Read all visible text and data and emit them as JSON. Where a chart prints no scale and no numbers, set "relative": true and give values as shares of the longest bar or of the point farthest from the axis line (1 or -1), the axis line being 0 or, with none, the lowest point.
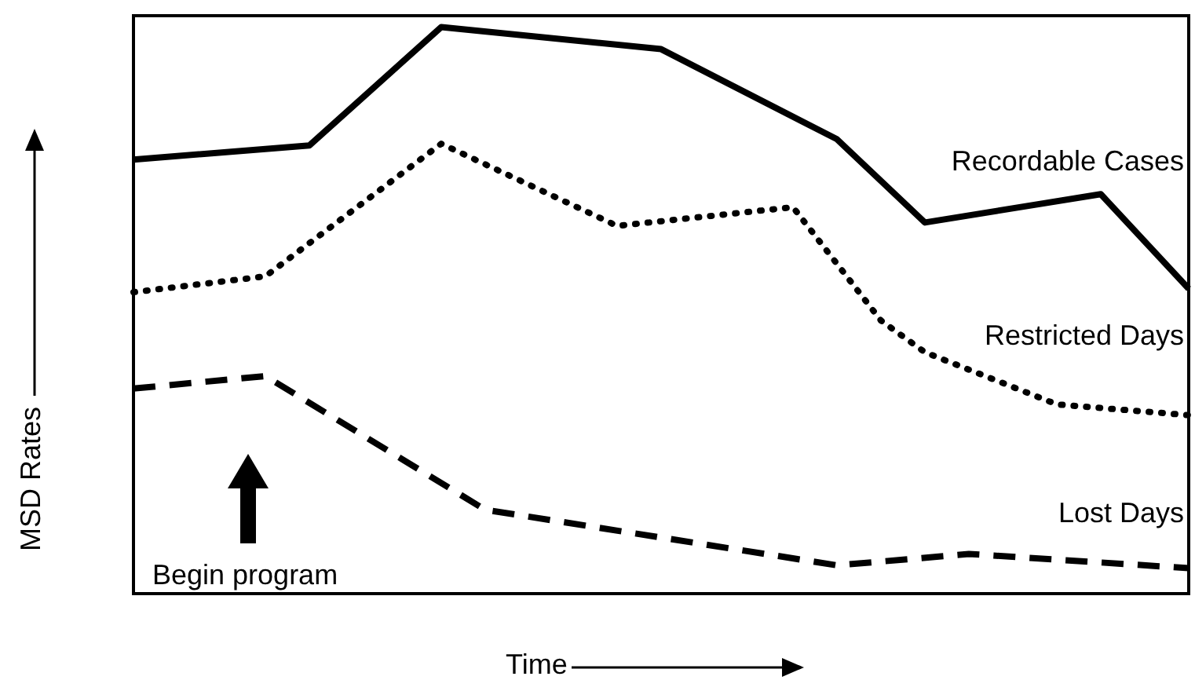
{
  "chart_data": {
    "type": "line",
    "relative": true,
    "xlabel": "Time",
    "ylabel": "MSD Rates",
    "marker": "none",
    "annotations": [
      "Begin program"
    ],
    "categories": [
      null,
      null,
      null,
      null,
      null,
      null,
      null,
      null,
      null,
      null,
      null,
      null,
      null,
      null,
      null,
      null,
      null,
      null,
      null,
      null,
      null,
      null,
      null,
      null,
      null
    ],
    "series": [
      {
        "name": "Recordable Cases",
        "color": "#000000",
        "line_style": "solid",
        "values": [
          0.766,
          null,
          null,
          null,
          0.791,
          null,
          null,
          1,
          null,
          null,
          null,
          null,
          0.961,
          null,
          null,
          null,
          0.802,
          null,
          0.655,
          null,
          null,
          null,
          0.705,
          null,
          0.538
        ]
      },
      {
        "name": "Restricted Days",
        "color": "#000000",
        "line_style": "dotted",
        "values": [
          0.532,
          null,
          null,
          0.56,
          null,
          null,
          null,
          0.794,
          null,
          null,
          null,
          0.649,
          null,
          null,
          null,
          0.682,
          null,
          0.482,
          0.426,
          null,
          null,
          0.334,
          null,
          null,
          0.315
        ]
      },
      {
        "name": "Lost Days",
        "color": "#000000",
        "line_style": "dashed",
        "values": [
          0.362,
          null,
          null,
          0.384,
          null,
          null,
          null,
          null,
          0.148,
          null,
          null,
          null,
          null,
          null,
          null,
          null,
          0.05,
          null,
          null,
          0.07,
          null,
          null,
          null,
          null,
          0.045
        ]
      }
    ]
  }
}
